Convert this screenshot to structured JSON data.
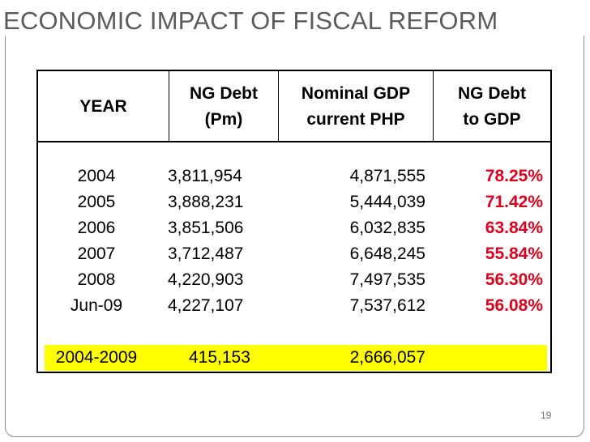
{
  "slide": {
    "title": "ECONOMIC IMPACT OF FISCAL REFORM",
    "page_number": "19"
  },
  "table": {
    "headers": [
      {
        "line1": "",
        "line2": "YEAR"
      },
      {
        "line1": "NG Debt",
        "line2": "(Pm)"
      },
      {
        "line1": "Nominal GDP",
        "line2": "current PHP"
      },
      {
        "line1": "NG Debt",
        "line2": "to GDP"
      }
    ],
    "rows": [
      {
        "year": "2004",
        "debt": "3,811,954",
        "gdp": "4,871,555",
        "ratio": "78.25%"
      },
      {
        "year": "2005",
        "debt": "3,888,231",
        "gdp": "5,444,039",
        "ratio": "71.42%"
      },
      {
        "year": "2006",
        "debt": "3,851,506",
        "gdp": "6,032,835",
        "ratio": "63.84%"
      },
      {
        "year": "2007",
        "debt": "3,712,487",
        "gdp": "6,648,245",
        "ratio": "55.84%"
      },
      {
        "year": "2008",
        "debt": "4,220,903",
        "gdp": "7,497,535",
        "ratio": "56.30%"
      },
      {
        "year": "Jun-09",
        "debt": "4,227,107",
        "gdp": "7,537,612",
        "ratio": "56.08%"
      }
    ],
    "total": {
      "year": "2004-2009",
      "debt": "415,153",
      "gdp": "2,666,057",
      "ratio": ""
    }
  },
  "colors": {
    "ratio_text": "#e0001b",
    "total_highlight": "#ffff00",
    "title_text": "#5b5b5b"
  }
}
